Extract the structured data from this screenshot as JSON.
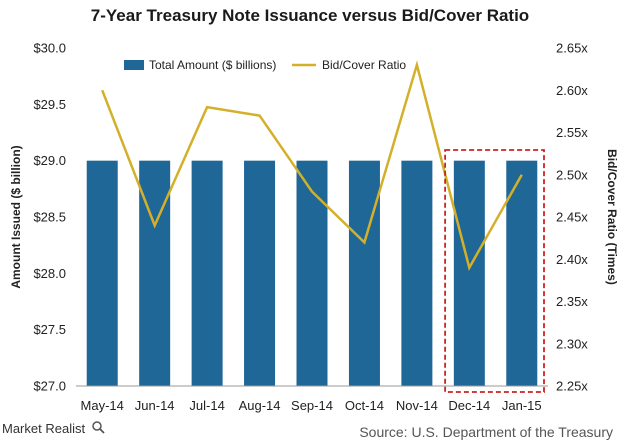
{
  "colors": {
    "bar": "#1f6796",
    "line": "#d4b02a",
    "highlight": "#cc2222"
  },
  "footer": {
    "brand": "Market Realist",
    "source": "Source: U.S. Department of the Treasury"
  },
  "chart_data": {
    "type": "bar",
    "title": "7-Year Treasury Note Issuance versus Bid/Cover Ratio",
    "categories": [
      "May-14",
      "Jun-14",
      "Jul-14",
      "Aug-14",
      "Sep-14",
      "Oct-14",
      "Nov-14",
      "Dec-14",
      "Jan-15"
    ],
    "series": [
      {
        "name": "Total Amount ($ billions)",
        "type": "bar",
        "axis": "left",
        "values": [
          29,
          29,
          29,
          29,
          29,
          29,
          29,
          29,
          29
        ]
      },
      {
        "name": "Bid/Cover Ratio",
        "type": "line",
        "axis": "right",
        "values": [
          2.6,
          2.44,
          2.58,
          2.57,
          2.48,
          2.42,
          2.63,
          2.39,
          2.5
        ]
      }
    ],
    "ylabel": "Amount Issued ($ billion)",
    "ylabel_right": "Bid/Cover Ratio (Times)",
    "ylim": [
      27.0,
      30.0
    ],
    "ylim_right": [
      2.25,
      2.65
    ],
    "yticks": [
      "$27.0",
      "$27.5",
      "$28.0",
      "$28.5",
      "$29.0",
      "$29.5",
      "$30.0"
    ],
    "yticks_right": [
      "2.25x",
      "2.30x",
      "2.35x",
      "2.40x",
      "2.45x",
      "2.50x",
      "2.55x",
      "2.60x",
      "2.65x"
    ],
    "legend_position": "top",
    "highlighted_categories": [
      "Dec-14",
      "Jan-15"
    ],
    "grid": false
  }
}
